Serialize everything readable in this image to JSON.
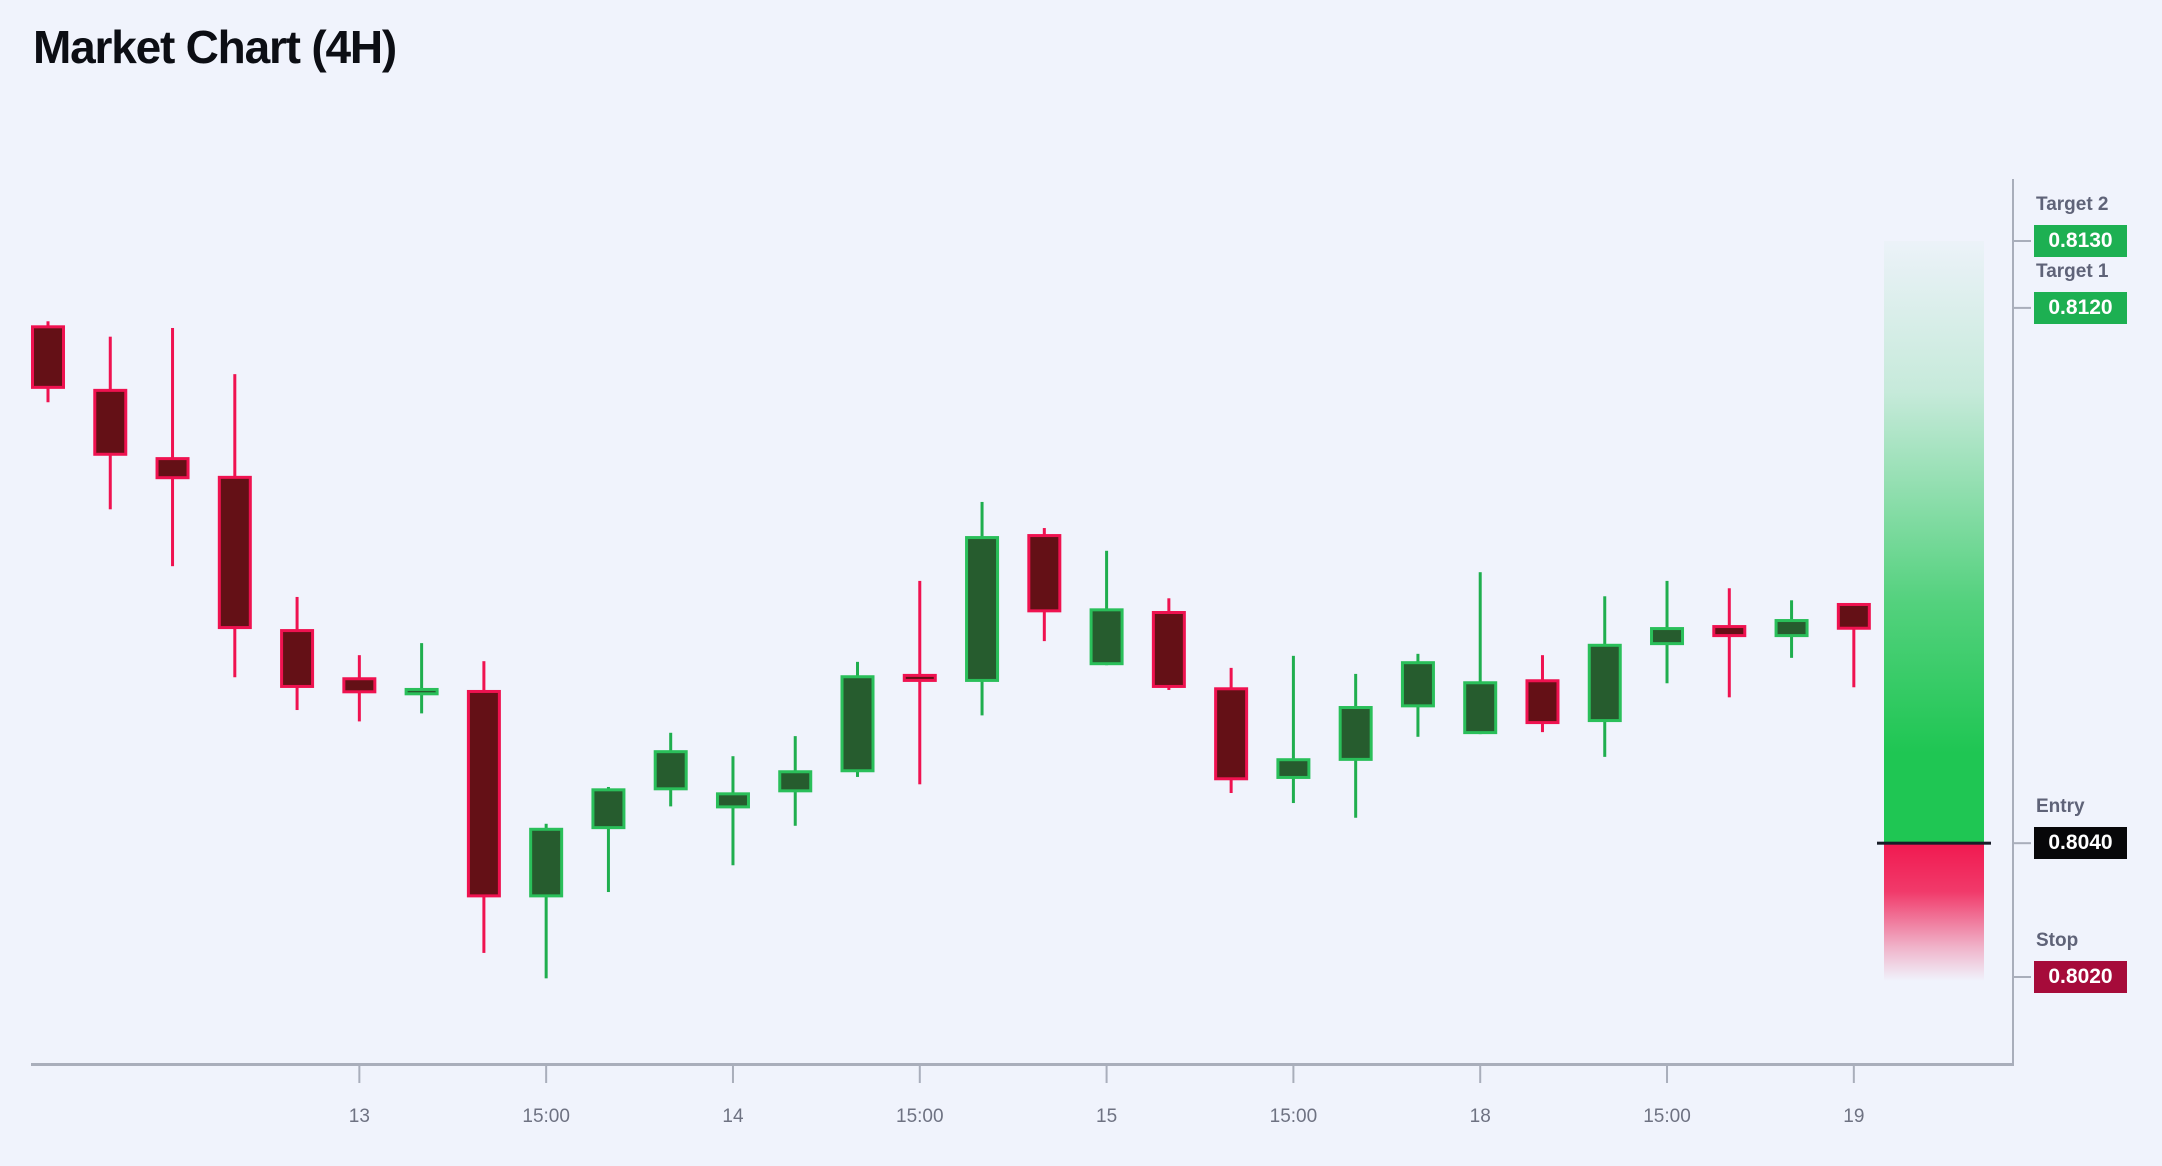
{
  "title": "Market Chart (4H)",
  "colors": {
    "background": "#f0f3fc",
    "title_text": "#0c0e14",
    "axis_line": "#a9aebb",
    "axis_label": "#6e7282",
    "level_label": "#5f6378",
    "up_fill": "#265c2e",
    "up_border": "#2abf5a",
    "up_wick": "#1fae4e",
    "down_fill": "#641016",
    "down_border": "#ef1250",
    "down_wick": "#ef1250",
    "profit_zone_green": "#1fc653",
    "loss_zone_red": "#f11950",
    "entry_line": "#181c28",
    "target_badge_bg": "#1db052",
    "entry_badge_bg": "#070709",
    "stop_badge_bg": "#a60b3a",
    "badge_text": "#ffffff"
  },
  "chart_data": {
    "type": "candlestick",
    "title": "Market Chart (4H)",
    "grid": false,
    "legend": "none",
    "ylim": [
      0.8015,
      0.8135
    ],
    "x_ticks": [
      {
        "index": 5,
        "label": "13"
      },
      {
        "index": 8,
        "label": "15:00"
      },
      {
        "index": 11,
        "label": "14"
      },
      {
        "index": 14,
        "label": "15:00"
      },
      {
        "index": 17,
        "label": "15"
      },
      {
        "index": 20,
        "label": "15:00"
      },
      {
        "index": 23,
        "label": "18"
      },
      {
        "index": 26,
        "label": "15:00"
      },
      {
        "index": 29,
        "label": "19"
      }
    ],
    "candles": [
      {
        "o": 0.81174,
        "h": 0.8118,
        "l": 0.81059,
        "c": 0.81079
      },
      {
        "o": 0.81079,
        "h": 0.81157,
        "l": 0.80899,
        "c": 0.80979
      },
      {
        "o": 0.80977,
        "h": 0.8117,
        "l": 0.80814,
        "c": 0.80944
      },
      {
        "o": 0.80949,
        "h": 0.81101,
        "l": 0.80648,
        "c": 0.8072
      },
      {
        "o": 0.8072,
        "h": 0.80768,
        "l": 0.80599,
        "c": 0.80632
      },
      {
        "o": 0.80648,
        "h": 0.80681,
        "l": 0.80582,
        "c": 0.80624
      },
      {
        "o": 0.80621,
        "h": 0.80699,
        "l": 0.80594,
        "c": 0.80632
      },
      {
        "o": 0.80629,
        "h": 0.80672,
        "l": 0.80236,
        "c": 0.80319
      },
      {
        "o": 0.80319,
        "h": 0.80429,
        "l": 0.80198,
        "c": 0.80423
      },
      {
        "o": 0.80421,
        "h": 0.80484,
        "l": 0.80327,
        "c": 0.80482
      },
      {
        "o": 0.80479,
        "h": 0.80565,
        "l": 0.80455,
        "c": 0.80539
      },
      {
        "o": 0.80452,
        "h": 0.8053,
        "l": 0.80367,
        "c": 0.80476
      },
      {
        "o": 0.80476,
        "h": 0.8056,
        "l": 0.80426,
        "c": 0.80509
      },
      {
        "o": 0.80506,
        "h": 0.80671,
        "l": 0.80499,
        "c": 0.80651
      },
      {
        "o": 0.80653,
        "h": 0.80792,
        "l": 0.80488,
        "c": 0.80641
      },
      {
        "o": 0.80641,
        "h": 0.8091,
        "l": 0.80591,
        "c": 0.80859
      },
      {
        "o": 0.80862,
        "h": 0.80871,
        "l": 0.80702,
        "c": 0.80745
      },
      {
        "o": 0.80666,
        "h": 0.80837,
        "l": 0.80666,
        "c": 0.80751
      },
      {
        "o": 0.80747,
        "h": 0.80766,
        "l": 0.80629,
        "c": 0.80632
      },
      {
        "o": 0.80633,
        "h": 0.80662,
        "l": 0.80475,
        "c": 0.80494
      },
      {
        "o": 0.80496,
        "h": 0.8068,
        "l": 0.8046,
        "c": 0.80527
      },
      {
        "o": 0.80523,
        "h": 0.80653,
        "l": 0.80438,
        "c": 0.80605
      },
      {
        "o": 0.80603,
        "h": 0.80683,
        "l": 0.80559,
        "c": 0.80672
      },
      {
        "o": 0.80563,
        "h": 0.80805,
        "l": 0.80563,
        "c": 0.80642
      },
      {
        "o": 0.80645,
        "h": 0.80681,
        "l": 0.80566,
        "c": 0.80578
      },
      {
        "o": 0.80581,
        "h": 0.80769,
        "l": 0.80529,
        "c": 0.80698
      },
      {
        "o": 0.80696,
        "h": 0.80792,
        "l": 0.80639,
        "c": 0.80723
      },
      {
        "o": 0.80726,
        "h": 0.80781,
        "l": 0.80618,
        "c": 0.80708
      },
      {
        "o": 0.80708,
        "h": 0.80763,
        "l": 0.80677,
        "c": 0.80735
      },
      {
        "o": 0.80759,
        "h": 0.80759,
        "l": 0.80633,
        "c": 0.80719
      }
    ],
    "levels": [
      {
        "name": "Target 2",
        "price": "0.8130",
        "value": 0.813,
        "kind": "target"
      },
      {
        "name": "Target 1",
        "price": "0.8120",
        "value": 0.812,
        "kind": "target"
      },
      {
        "name": "Entry",
        "price": "0.8040",
        "value": 0.804,
        "kind": "entry"
      },
      {
        "name": "Stop",
        "price": "0.8020",
        "value": 0.802,
        "kind": "stop"
      }
    ]
  }
}
